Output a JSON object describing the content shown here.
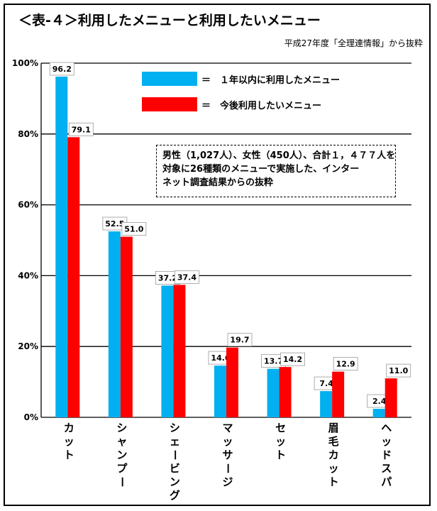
{
  "title": "＜表-４＞利用したメニューと利用したいメニュー",
  "source": "平成27年度「全理連情報」から抜粋",
  "note": {
    "lines": [
      "男性（1,027人）、女性（450人）、合計１，４７７人を",
      "対象に26種類のメニューで実施した、インター",
      "ネット調査結果からの抜粋"
    ]
  },
  "colors": {
    "series1": "#00b0f0",
    "series2": "#ff0000",
    "gridline": "#000000"
  },
  "chart_data": {
    "type": "bar",
    "categories": [
      "カット",
      "シャンプー",
      "シェービング",
      "マッサージ",
      "セット",
      "眉毛カット",
      "ヘッドスパ"
    ],
    "series": [
      {
        "name": "＝　１年以内に利用したメニュー",
        "values": [
          96.2,
          52.5,
          37.2,
          14.6,
          13.7,
          7.4,
          2.4
        ]
      },
      {
        "name": "＝　今後利用したいメニュー",
        "values": [
          79.1,
          51.0,
          37.4,
          19.7,
          14.2,
          12.9,
          11.0
        ]
      }
    ],
    "data_labels": [
      [
        "96.2",
        "52.5",
        "37.2",
        "14.6",
        "13.7",
        "7.4",
        "2.4"
      ],
      [
        "79.1",
        "51.0",
        "37.4",
        "19.7",
        "14.2",
        "12.9",
        "11.0"
      ]
    ],
    "ylim": [
      0,
      100
    ],
    "yticks": [
      "0%",
      "20%",
      "40%",
      "60%",
      "80%",
      "100%"
    ],
    "ytick_values": [
      0,
      20,
      40,
      60,
      80,
      100
    ],
    "grid": true,
    "legend_position": "top-center",
    "xlabel": "",
    "ylabel": ""
  }
}
